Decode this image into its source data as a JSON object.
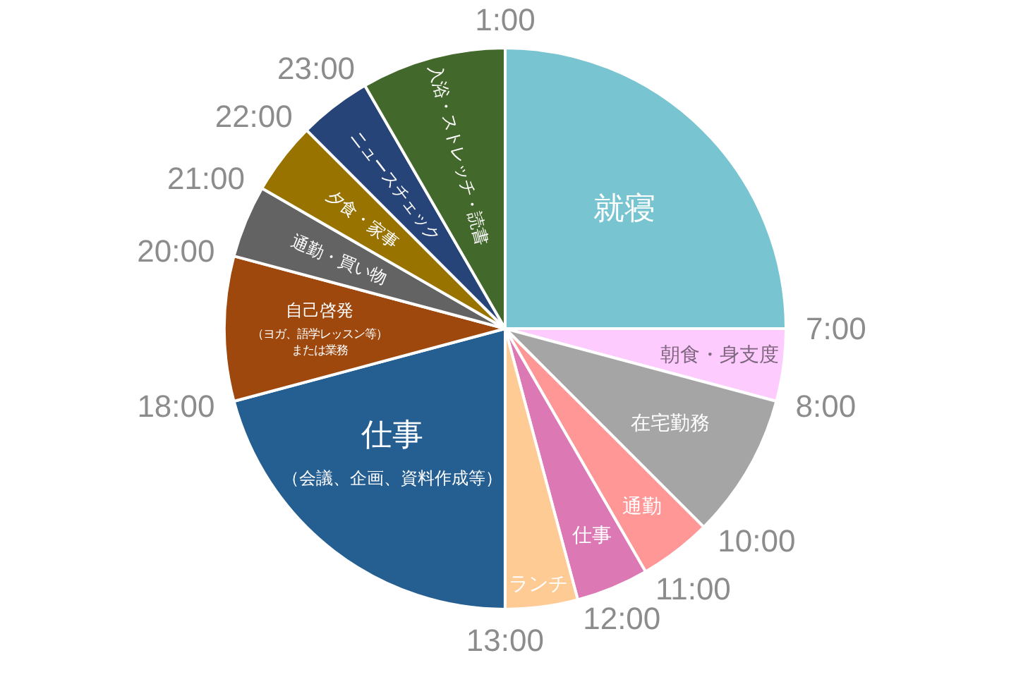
{
  "chart_data": {
    "type": "pie",
    "categories": [
      "就寝",
      "朝食・身支度",
      "在宅勤務",
      "通勤",
      "仕事",
      "ランチ",
      "仕事（会議、企画、資料作成等）",
      "自己啓発（ヨガ、語学レッスン等）または業務",
      "通勤・買い物",
      "夕食・家事",
      "ニュースチェック",
      "入浴・ストレッチ・読書"
    ],
    "values": [
      25,
      4.17,
      8.33,
      4.17,
      4.17,
      4.17,
      20.83,
      8.33,
      4.17,
      4.17,
      4.17,
      8.33
    ],
    "colors": [
      "#78c5d1",
      "#fdcbfd",
      "#a5a5a5",
      "#ff9797",
      "#dc79b5",
      "#fecb94",
      "#255e91",
      "#9e480e",
      "#636363",
      "#997300",
      "#264478",
      "#43682b"
    ],
    "annotations": [
      "1:00",
      "7:00",
      "8:00",
      "10:00",
      "11:00",
      "12:00",
      "13:00",
      "18:00",
      "20:00",
      "21:00",
      "22:00",
      "23:00"
    ]
  }
}
